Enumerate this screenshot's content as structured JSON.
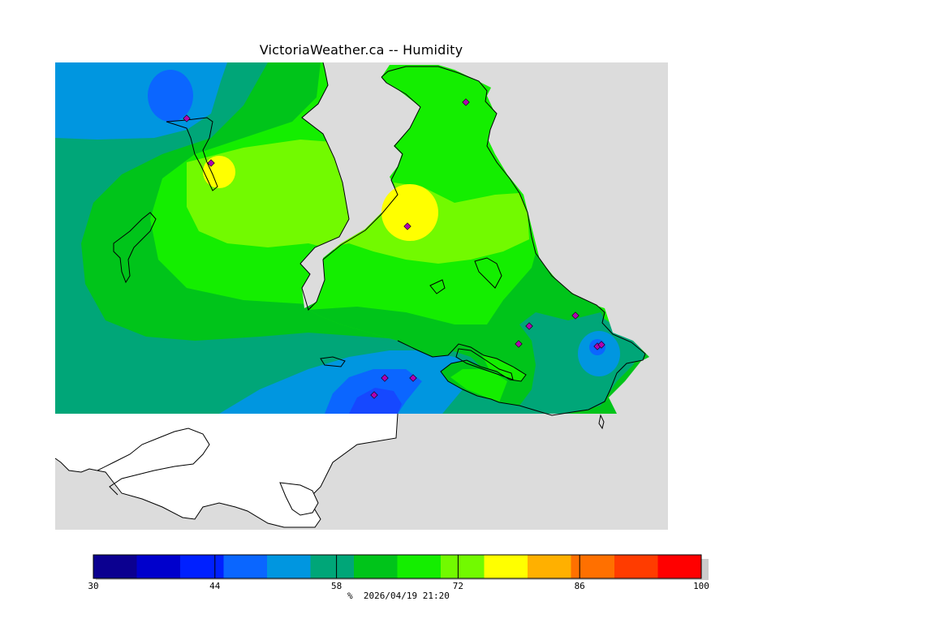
{
  "title": "VictoriaWeather.ca -- Humidity",
  "colors": {
    "land_gray": "#dcdcdc",
    "blue_dark": "#1648ff",
    "blue_mid": "#0b66ff",
    "blue_light": "#0096e0",
    "teal": "#00a678",
    "green_dark": "#00c41a",
    "green": "#14ee00",
    "green_yellow": "#72fa00",
    "yellow": "#ffff00",
    "navy": "#0000cc"
  },
  "colorbar": {
    "unit": "%",
    "timestamp": "2026/04/19 21:20",
    "ticks": [
      {
        "label": "30"
      },
      {
        "label": "44"
      },
      {
        "label": "58"
      },
      {
        "label": "72"
      },
      {
        "label": "86"
      },
      {
        "label": "100"
      }
    ],
    "bins": [
      {
        "from": 30,
        "to": 35,
        "color": "#0b0090"
      },
      {
        "from": 35,
        "to": 40,
        "color": "#0000cc"
      },
      {
        "from": 40,
        "to": 45,
        "color": "#0020ff"
      },
      {
        "from": 45,
        "to": 50,
        "color": "#0a66ff"
      },
      {
        "from": 50,
        "to": 55,
        "color": "#0096e0"
      },
      {
        "from": 55,
        "to": 60,
        "color": "#00a678"
      },
      {
        "from": 60,
        "to": 65,
        "color": "#00c41a"
      },
      {
        "from": 65,
        "to": 70,
        "color": "#14ee00"
      },
      {
        "from": 70,
        "to": 75,
        "color": "#72fa00"
      },
      {
        "from": 75,
        "to": 80,
        "color": "#ffff00"
      },
      {
        "from": 80,
        "to": 85,
        "color": "#ffb000"
      },
      {
        "from": 85,
        "to": 90,
        "color": "#ff7000"
      },
      {
        "from": 90,
        "to": 95,
        "color": "#ff3c00"
      },
      {
        "from": 95,
        "to": 100,
        "color": "#ff0000"
      }
    ]
  }
}
